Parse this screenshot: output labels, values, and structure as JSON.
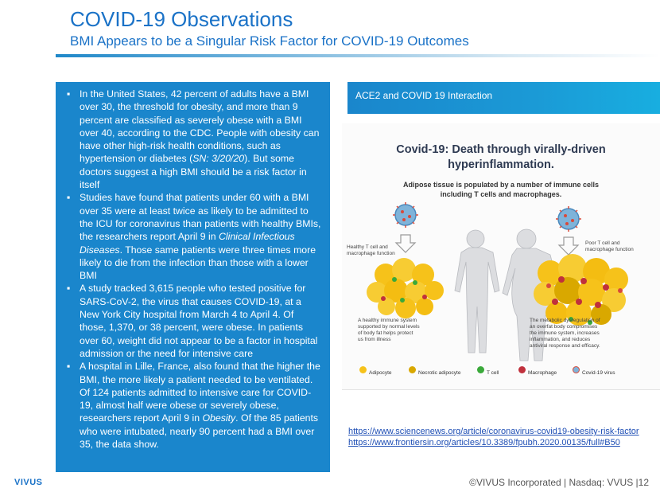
{
  "header": {
    "title": "COVID-19 Observations",
    "subtitle": "BMI Appears to be a Singular Risk Factor for COVID-19 Outcomes"
  },
  "bullets": [
    {
      "parts": [
        {
          "t": "In the United States, 42 percent of adults have a BMI over 30, the threshold for obesity, and more than 9 percent are classified as severely obese with a BMI over 40, according to the CDC. People with obesity can have other high-risk health conditions, such as hypertension or diabetes ("
        },
        {
          "t": "SN: 3/20/20",
          "i": true
        },
        {
          "t": "). But some doctors suggest a high BMI should be a risk factor in itself"
        }
      ]
    },
    {
      "parts": [
        {
          "t": "Studies have found that patients under 60 with a BMI over 35 were at least twice as likely to be admitted to the ICU for coronavirus than patients with healthy BMIs, the researchers report April 9 in "
        },
        {
          "t": "Clinical Infectious Diseases",
          "i": true
        },
        {
          "t": ". Those same patients were three times more likely to die from the infection than those with a lower BMI"
        }
      ]
    },
    {
      "parts": [
        {
          "t": "A study tracked 3,615 people who tested positive for SARS-CoV-2, the virus that causes COVID-19, at a New York City hospital from March 4 to April 4. Of those, 1,370, or 38 percent, were obese. In patients over 60, weight did not appear to be a factor in hospital admission or the need for intensive care"
        }
      ]
    },
    {
      "parts": [
        {
          "t": "A hospital in Lille, France, also found that the higher the BMI, the more likely a patient needed to be ventilated. Of 124 patients admitted to intensive care for COVID-19, almost half were obese or severely obese, researchers report April 9 in "
        },
        {
          "t": "Obesity",
          "i": true
        },
        {
          "t": ". Of the 85 patients who were intubated, nearly 90 percent had a BMI over 35, the data show."
        }
      ]
    }
  ],
  "right_panel": {
    "header": "ACE2 and COVID 19 Interaction"
  },
  "infographic": {
    "title_line1": "Covid-19: Death through virally-driven",
    "title_line2": "hyperinflammation.",
    "subtitle_line1": "Adipose tissue is populated by a number of immune cells",
    "subtitle_line2": "including T cells and macrophages.",
    "label_left_1": "Healthy T cell and",
    "label_left_2": "macrophage function",
    "label_right_1": "Poor T cell and",
    "label_right_2": "macrophage function",
    "caption_left": [
      "A healthy immune system",
      "supported by normal levels",
      "of body fat helps protect",
      "us from illness"
    ],
    "caption_right": [
      "The metabolic dysregulation of",
      "an overfat body compromises",
      "the immune system, increases",
      "inflammation, and reduces",
      "antiviral response and efficacy."
    ],
    "legend": [
      {
        "label": "Adipocyte",
        "color": "#f6c21a"
      },
      {
        "label": "Necrotic adipocyte",
        "color": "#d9a800"
      },
      {
        "label": "T cell",
        "color": "#3aa93a"
      },
      {
        "label": "Macrophage",
        "color": "#c0303c"
      },
      {
        "label": "Covid-19 virus",
        "color": "#d84a3a"
      }
    ]
  },
  "links": [
    "https://www.sciencenews.org/article/coronavirus-covid19-obesity-risk-factor",
    "https://www.frontiersin.org/articles/10.3389/fpubh.2020.00135/full#B50"
  ],
  "footer": {
    "brand": "VIVUS",
    "text": "©VIVUS Incorporated | Nasdaq: VVUS |12"
  },
  "colors": {
    "accent_blue": "#1a72c7",
    "panel_blue": "#1a86cc",
    "link_blue": "#1f4fb5"
  }
}
